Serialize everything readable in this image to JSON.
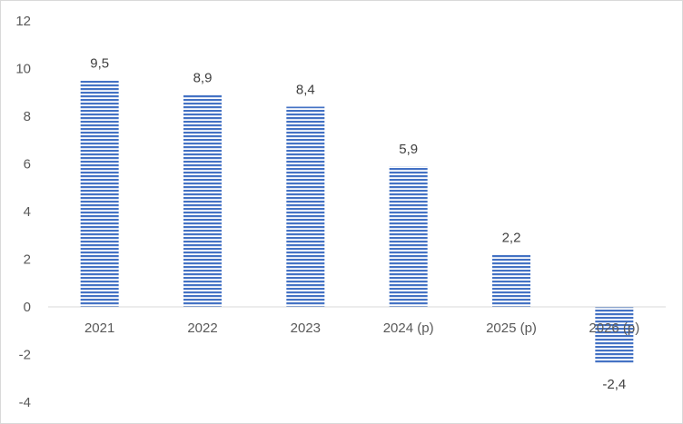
{
  "chart_data": {
    "type": "bar",
    "categories": [
      "2021",
      "2022",
      "2023",
      "2024 (p)",
      "2025 (p)",
      "2026 (p)"
    ],
    "values": [
      9.5,
      8.9,
      8.4,
      5.9,
      2.2,
      -2.4
    ],
    "data_labels": [
      "9,5",
      "8,9",
      "8,4",
      "5,9",
      "2,2",
      "-2,4"
    ],
    "y_ticks": [
      "12",
      "10",
      "8",
      "6",
      "4",
      "2",
      "0",
      "-2",
      "-4"
    ],
    "ylim": [
      -4,
      12
    ],
    "title": "",
    "xlabel": "",
    "ylabel": "",
    "grid": false,
    "legend": "none",
    "bar_color": "#4472c4",
    "bar_pattern": "horizontal-stripes"
  }
}
